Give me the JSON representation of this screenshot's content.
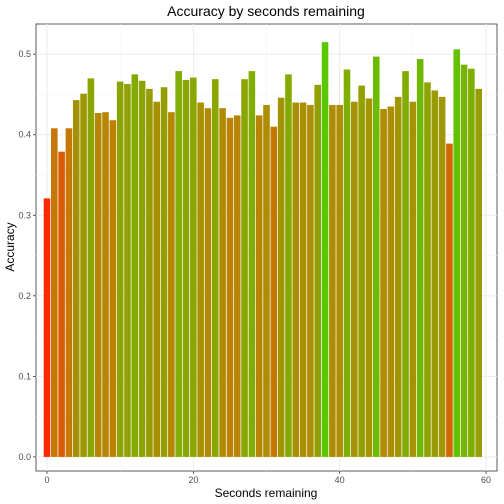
{
  "chart_data": {
    "type": "bar",
    "title": "Accuracy by seconds remaining",
    "xlabel": "Seconds remaining",
    "ylabel": "Accuracy",
    "xlim": [
      -1.5,
      61.5
    ],
    "ylim": [
      -0.0175,
      0.5375
    ],
    "x_ticks": [
      0,
      20,
      40,
      60
    ],
    "y_ticks": [
      0.0,
      0.1,
      0.2,
      0.3,
      0.4,
      0.5
    ],
    "grid": true,
    "legend": "none",
    "color_scale": {
      "low": "#ff2a00",
      "mid": "#c07f00",
      "high": "#5ac800",
      "domain": [
        0.32,
        0.515
      ]
    },
    "x": [
      0,
      1,
      2,
      3,
      4,
      5,
      6,
      7,
      8,
      9,
      10,
      11,
      12,
      13,
      14,
      15,
      16,
      17,
      18,
      19,
      20,
      21,
      22,
      23,
      24,
      25,
      26,
      27,
      28,
      29,
      30,
      31,
      32,
      33,
      34,
      35,
      36,
      37,
      38,
      39,
      40,
      41,
      42,
      43,
      44,
      45,
      46,
      47,
      48,
      49,
      50,
      51,
      52,
      53,
      54,
      55,
      56,
      57,
      58,
      59
    ],
    "values": [
      0.321,
      0.408,
      0.379,
      0.408,
      0.443,
      0.451,
      0.47,
      0.427,
      0.428,
      0.418,
      0.466,
      0.463,
      0.475,
      0.467,
      0.457,
      0.441,
      0.459,
      0.428,
      0.479,
      0.468,
      0.471,
      0.44,
      0.433,
      0.469,
      0.433,
      0.421,
      0.424,
      0.469,
      0.479,
      0.424,
      0.437,
      0.41,
      0.446,
      0.475,
      0.44,
      0.44,
      0.437,
      0.462,
      0.515,
      0.437,
      0.437,
      0.481,
      0.441,
      0.461,
      0.445,
      0.497,
      0.432,
      0.435,
      0.447,
      0.479,
      0.441,
      0.494,
      0.465,
      0.455,
      0.447,
      0.389,
      0.506,
      0.487,
      0.482,
      0.457
    ]
  }
}
